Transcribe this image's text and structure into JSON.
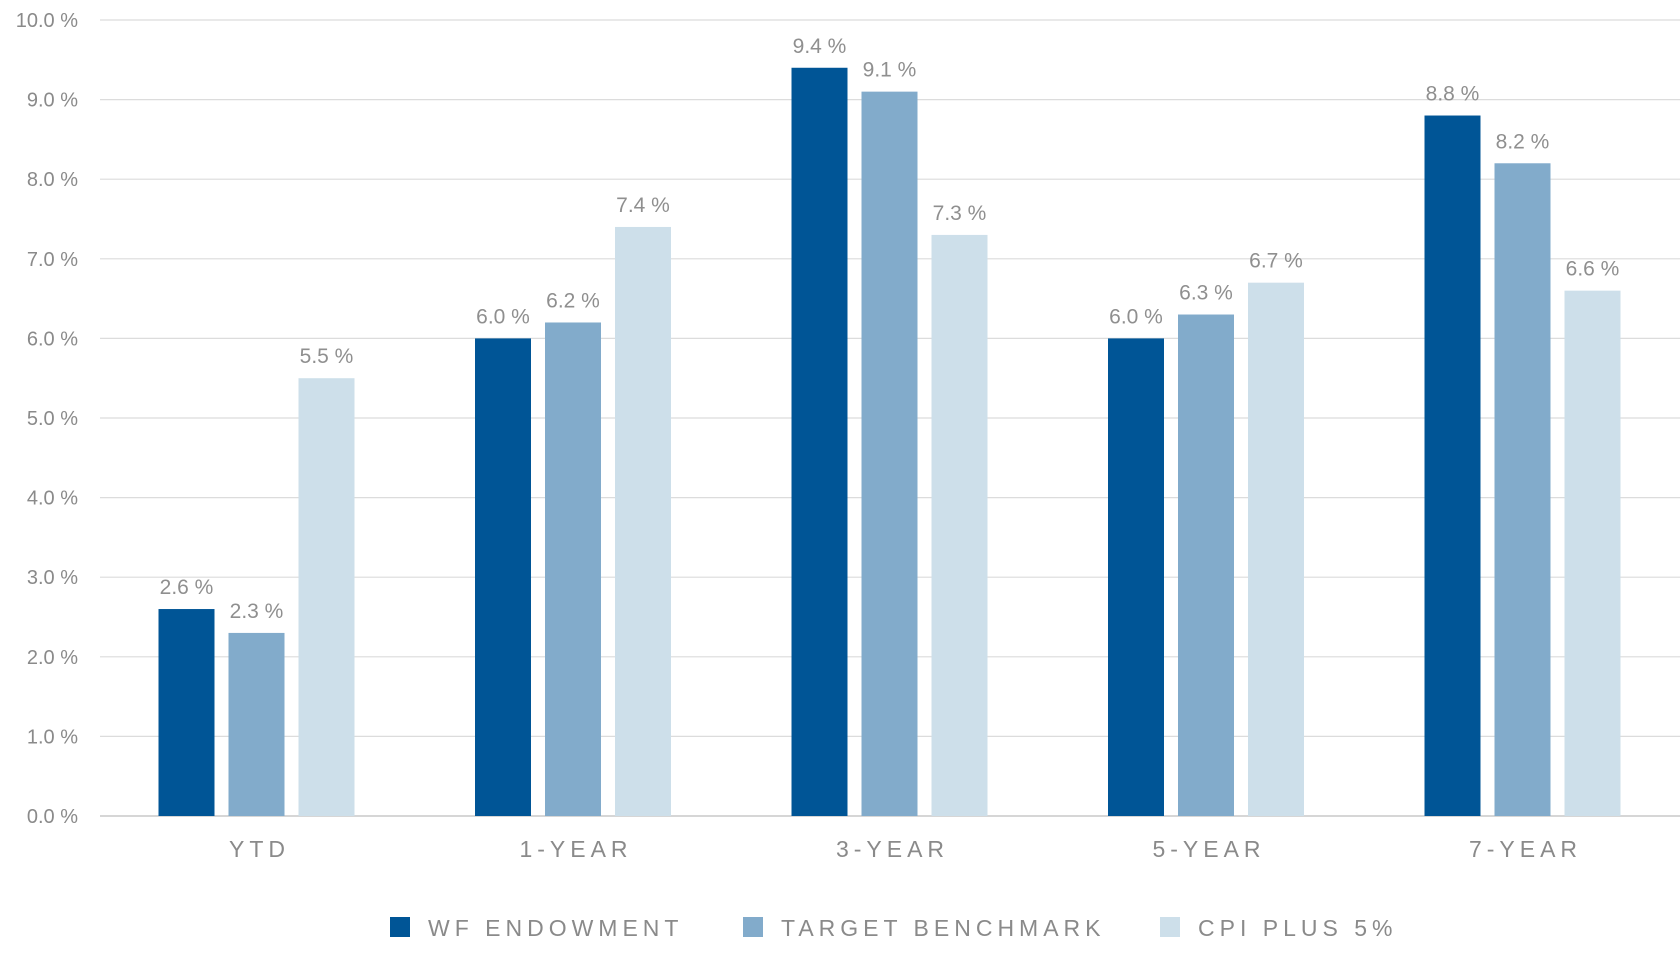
{
  "chart_data": {
    "type": "bar",
    "categories": [
      "YTD",
      "1-YEAR",
      "3-YEAR",
      "5-YEAR",
      "7-YEAR"
    ],
    "series": [
      {
        "name": "WF ENDOWMENT",
        "color": "#005596",
        "values": [
          2.6,
          6.0,
          9.4,
          6.0,
          8.8
        ]
      },
      {
        "name": "TARGET BENCHMARK",
        "color": "#82abcb",
        "values": [
          2.3,
          6.2,
          9.1,
          6.3,
          8.2
        ]
      },
      {
        "name": "CPI PLUS 5%",
        "color": "#cddfea",
        "values": [
          5.5,
          7.4,
          7.3,
          6.7,
          6.6
        ]
      }
    ],
    "value_labels": [
      [
        "2.6 %",
        "6.0 %",
        "9.4 %",
        "6.0 %",
        "8.8 %"
      ],
      [
        "2.3 %",
        "6.2 %",
        "9.1 %",
        "6.3 %",
        "8.2 %"
      ],
      [
        "5.5 %",
        "7.4 %",
        "7.3 %",
        "6.7 %",
        "6.6 %"
      ]
    ],
    "y_ticks": [
      0,
      1,
      2,
      3,
      4,
      5,
      6,
      7,
      8,
      9,
      10
    ],
    "y_tick_labels": [
      "0.0 %",
      "1.0 %",
      "2.0 %",
      "3.0 %",
      "4.0 %",
      "5.0 %",
      "6.0 %",
      "7.0 %",
      "8.0 %",
      "9.0 %",
      "10.0 %"
    ],
    "ylim": [
      0,
      10
    ],
    "title": "",
    "xlabel": "",
    "ylabel": "",
    "grid": true,
    "legend_position": "bottom-center"
  }
}
